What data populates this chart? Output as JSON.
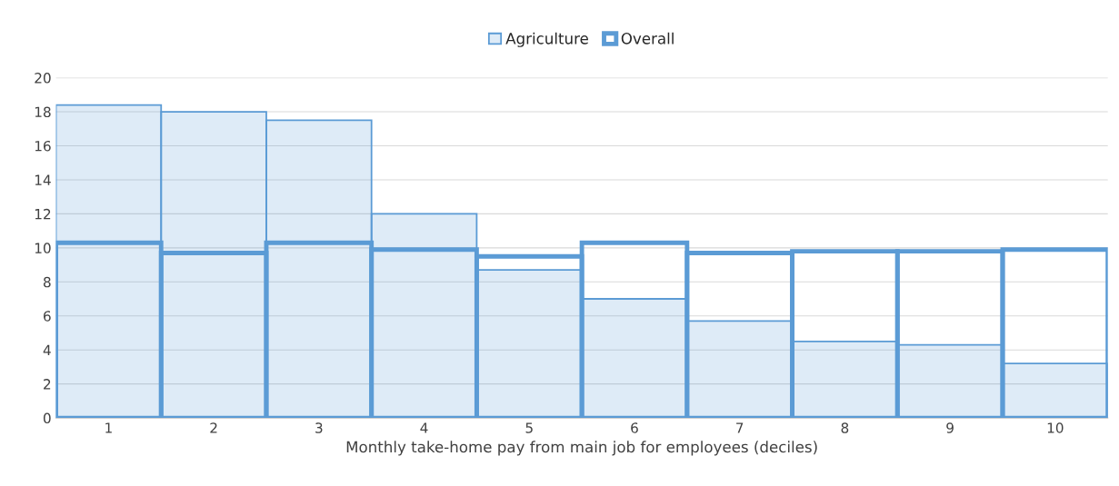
{
  "chart_data": {
    "type": "bar",
    "xlabel": "Monthly take-home pay from main job for employees (deciles)",
    "categories": [
      "1",
      "2",
      "3",
      "4",
      "5",
      "6",
      "7",
      "8",
      "9",
      "10"
    ],
    "series": [
      {
        "name": "Agriculture",
        "color": "#5b9bd5",
        "values": [
          18.4,
          18.0,
          17.5,
          12.0,
          8.7,
          7.0,
          5.7,
          4.5,
          4.3,
          3.2
        ]
      },
      {
        "name": "Overall",
        "color": "#5b9bd5",
        "values": [
          10.3,
          9.7,
          10.3,
          9.9,
          9.5,
          10.3,
          9.7,
          9.8,
          9.8,
          9.9
        ]
      }
    ],
    "ylim": [
      0,
      20
    ],
    "yticks": [
      0,
      2,
      4,
      6,
      8,
      10,
      12,
      14,
      16,
      18,
      20
    ],
    "grid": "y",
    "legend": "top"
  }
}
